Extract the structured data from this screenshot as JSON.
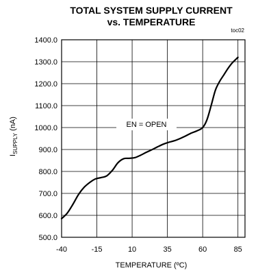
{
  "chart_data": {
    "type": "line",
    "title": "TOTAL SYSTEM SUPPLY CURRENT",
    "subtitle": "vs. TEMPERATURE",
    "figure_id": "toc02",
    "xlabel": "TEMPERATURE (ºC)",
    "ylabel_main": "I",
    "ylabel_sub": "SUPPLY",
    "ylabel_unit": " (nA)",
    "xlim": [
      -40,
      90
    ],
    "ylim": [
      500,
      1400
    ],
    "x_ticks": [
      -40,
      -15,
      10,
      35,
      60,
      85
    ],
    "x_tick_labels": [
      "-40",
      "-15",
      "10",
      "35",
      "60",
      "85"
    ],
    "y_ticks": [
      500,
      600,
      700,
      800,
      900,
      1000,
      1100,
      1200,
      1300,
      1400
    ],
    "y_tick_labels": [
      "500.0",
      "600.0",
      "700.0",
      "800.0",
      "900.0",
      "1000.0",
      "1100.0",
      "1200.0",
      "1300.0",
      "1400.0"
    ],
    "grid": true,
    "annotation": "EN = OPEN",
    "series": [
      {
        "x": [
          -40,
          -36,
          -32,
          -28,
          -24,
          -20,
          -16,
          -12,
          -8,
          -4,
          0,
          4,
          8,
          12,
          16,
          20,
          24,
          28,
          32,
          36,
          40,
          44,
          48,
          52,
          56,
          60,
          63,
          66,
          69,
          72,
          75,
          78,
          81,
          85
        ],
        "y": [
          585,
          610,
          650,
          695,
          728,
          750,
          766,
          772,
          780,
          805,
          840,
          858,
          860,
          863,
          874,
          887,
          899,
          912,
          924,
          933,
          940,
          950,
          962,
          975,
          985,
          1000,
          1035,
          1100,
          1170,
          1210,
          1240,
          1270,
          1295,
          1320
        ]
      }
    ]
  }
}
